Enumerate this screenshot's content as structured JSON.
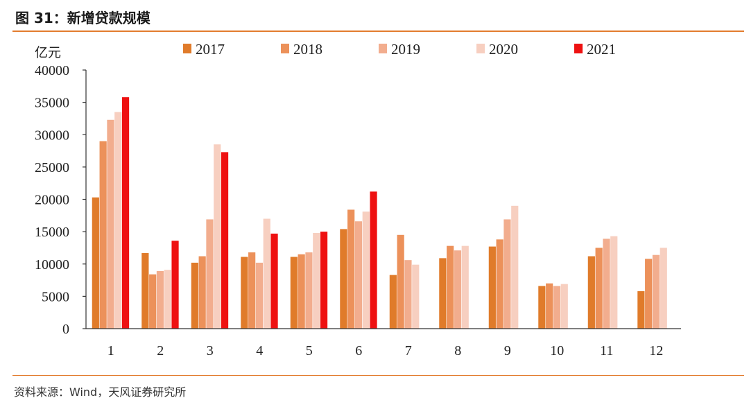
{
  "figure": {
    "title": "图 31：新增贷款规模",
    "source": "资料来源：Wind，天风证券研究所"
  },
  "colors": {
    "accent": "#e37c2e"
  },
  "chart_data": {
    "type": "bar",
    "title": "",
    "unit": "亿元",
    "xlabel": "",
    "ylabel": "亿元",
    "ylim": [
      0,
      40000
    ],
    "yticks": [
      0,
      5000,
      10000,
      15000,
      20000,
      25000,
      30000,
      35000,
      40000
    ],
    "grid": false,
    "legend_position": "top",
    "categories": [
      "1",
      "2",
      "3",
      "4",
      "5",
      "6",
      "7",
      "8",
      "9",
      "10",
      "11",
      "12"
    ],
    "series": [
      {
        "name": "2017",
        "color": "#e07b2a",
        "values": [
          20300,
          11700,
          10200,
          11100,
          11100,
          15400,
          8300,
          10900,
          12700,
          6600,
          11200,
          5800
        ]
      },
      {
        "name": "2018",
        "color": "#ec915a",
        "values": [
          29000,
          8400,
          11200,
          11800,
          11500,
          18400,
          14500,
          12800,
          13800,
          7000,
          12500,
          10800
        ]
      },
      {
        "name": "2019",
        "color": "#f2ad8e",
        "values": [
          32300,
          8900,
          16900,
          10200,
          11800,
          16600,
          10600,
          12100,
          16900,
          6600,
          13900,
          11400
        ]
      },
      {
        "name": "2020",
        "color": "#f7cfc0",
        "values": [
          33500,
          9100,
          28500,
          17000,
          14800,
          18100,
          9900,
          12800,
          19000,
          6900,
          14300,
          12500
        ]
      },
      {
        "name": "2021",
        "color": "#ee1111",
        "values": [
          35800,
          13600,
          27300,
          14700,
          15000,
          21200,
          null,
          null,
          null,
          null,
          null,
          null
        ]
      }
    ]
  }
}
